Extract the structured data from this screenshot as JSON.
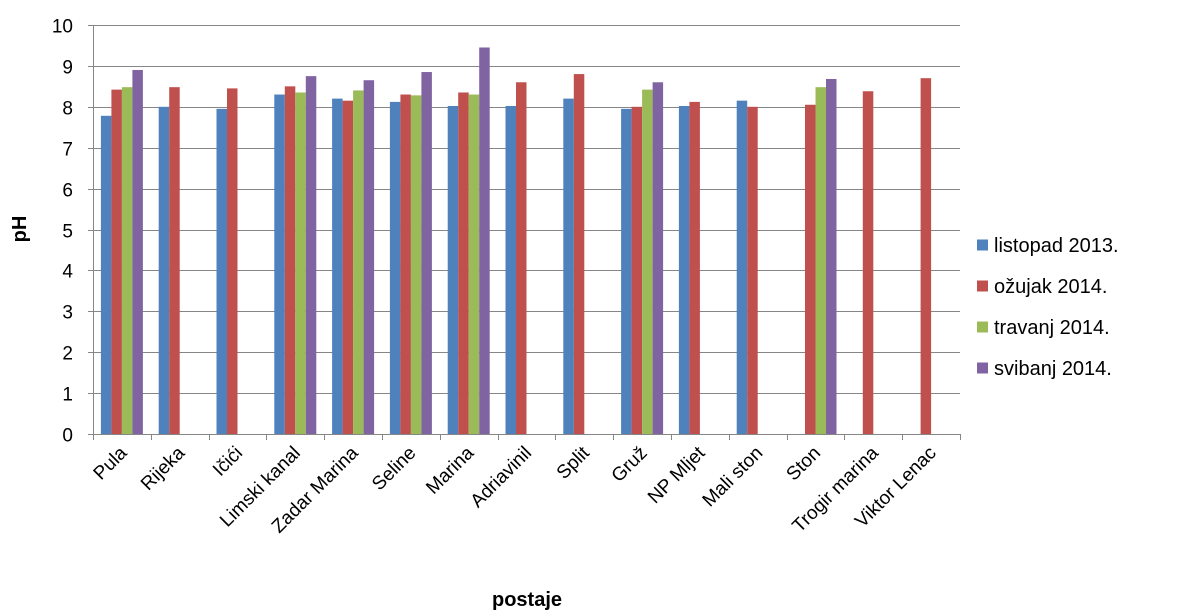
{
  "chart_data": {
    "type": "bar",
    "title": "",
    "xlabel": "postaje",
    "ylabel": "pH",
    "ylim": [
      0,
      10
    ],
    "yticks": [
      0,
      1,
      2,
      3,
      4,
      5,
      6,
      7,
      8,
      9,
      10
    ],
    "grid": true,
    "legend_position": "right",
    "categories": [
      "Pula",
      "Rijeka",
      "Ičići",
      "Limski kanal",
      "Zadar Marina",
      "Seline",
      "Marina",
      "Adriavinil",
      "Split",
      "Gruž",
      "NP Mljet",
      "Mali ston",
      "Ston",
      "Trogir marina",
      "Viktor Lenac"
    ],
    "series": [
      {
        "name": "listopad 2013.",
        "color": "#4F81BD",
        "values": [
          7.78,
          8.0,
          7.95,
          8.3,
          8.2,
          8.12,
          8.02,
          8.02,
          8.2,
          7.95,
          8.02,
          8.15,
          null,
          null,
          null
        ]
      },
      {
        "name": "ožujak 2014.",
        "color": "#C0504D",
        "values": [
          8.42,
          8.48,
          8.45,
          8.5,
          8.15,
          8.3,
          8.35,
          8.6,
          8.8,
          8.0,
          8.12,
          8.0,
          8.05,
          8.38,
          8.7
        ]
      },
      {
        "name": "travanj 2014.",
        "color": "#9BBB59",
        "values": [
          8.48,
          null,
          null,
          8.35,
          8.4,
          8.28,
          8.3,
          null,
          null,
          8.42,
          null,
          null,
          8.48,
          null,
          null
        ]
      },
      {
        "name": "svibanj 2014.",
        "color": "#8064A2",
        "values": [
          8.9,
          null,
          null,
          8.75,
          8.65,
          8.85,
          9.45,
          null,
          null,
          8.6,
          null,
          null,
          8.68,
          null,
          null
        ]
      }
    ]
  }
}
